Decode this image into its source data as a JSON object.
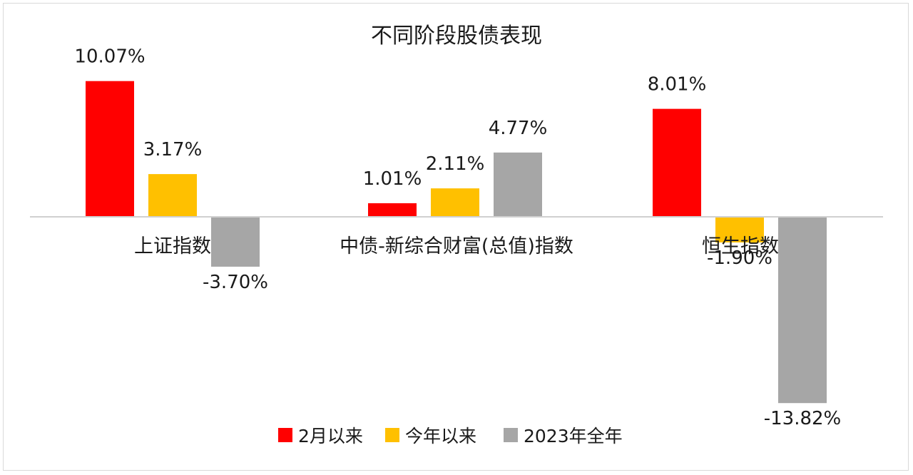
{
  "chart_data": {
    "type": "bar",
    "title": "不同阶段股债表现",
    "categories": [
      "上证指数",
      "中债-新综合财富(总值)指数",
      "恒生指数"
    ],
    "series": [
      {
        "name": "2月以来",
        "color": "#ff0000",
        "values": [
          10.07,
          1.01,
          8.01
        ],
        "labels": [
          "10.07%",
          "1.01%",
          "8.01%"
        ]
      },
      {
        "name": "今年以来",
        "color": "#ffc000",
        "values": [
          3.17,
          2.11,
          -1.9
        ],
        "labels": [
          "3.17%",
          "2.11%",
          "-1.90%"
        ]
      },
      {
        "name": "2023年全年",
        "color": "#a6a6a6",
        "values": [
          -3.7,
          4.77,
          -13.82
        ],
        "labels": [
          "-3.70%",
          "4.77%",
          "-13.82%"
        ]
      }
    ],
    "ylim": [
      -14,
      10.5
    ],
    "legend": "bottom",
    "grid": false
  }
}
